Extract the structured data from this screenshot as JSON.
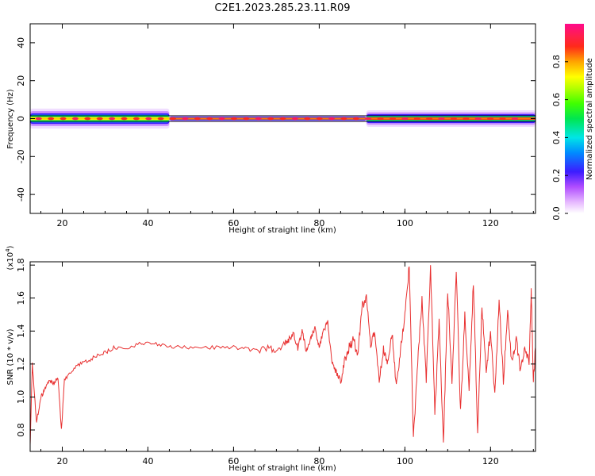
{
  "title": "C2E1.2023.285.23.11.R09",
  "colorbar": {
    "label": "Normalized spectral amplitude",
    "ticks": [
      "0.0",
      "0.2",
      "0.4",
      "0.6",
      "0.8"
    ]
  },
  "chart_data": [
    {
      "type": "heatmap",
      "title": "C2E1.2023.285.23.11.R09",
      "xlabel": "Height of straight line (km)",
      "ylabel": "Frequency (Hz)",
      "xlim": [
        12.5,
        130.5
      ],
      "ylim": [
        -50,
        50
      ],
      "x_ticks": [
        "20",
        "40",
        "60",
        "80",
        "100",
        "120"
      ],
      "y_ticks": [
        "40",
        "20",
        "0",
        "-20",
        "-40"
      ],
      "colorbar_label": "Normalized spectral amplitude",
      "colorbar_range": [
        0,
        1
      ],
      "band": {
        "center_hz": 0,
        "segments": [
          {
            "x": [
              12.5,
              45
            ],
            "half_width_hz": 3,
            "peak_amplitude": 0.7
          },
          {
            "x": [
              45,
              91
            ],
            "half_width_hz": 1,
            "peak_amplitude": 0.9
          },
          {
            "x": [
              91,
              130.5
            ],
            "half_width_hz": 2.5,
            "peak_amplitude": 0.9
          }
        ]
      },
      "lines_hz": [
        1.5,
        -1.5
      ]
    },
    {
      "type": "line",
      "xlabel": "Height of straight line (km)",
      "ylabel": "SNR (10 * v/v)",
      "multiplier": "(x10",
      "multiplier_exp": "4",
      "multiplier_close": ")",
      "xlim": [
        12.5,
        130.5
      ],
      "ylim": [
        0.67,
        1.82
      ],
      "x_ticks": [
        "20",
        "40",
        "60",
        "80",
        "100",
        "120"
      ],
      "y_ticks": [
        "0.8",
        "1.0",
        "1.2",
        "1.4",
        "1.6",
        "1.8"
      ],
      "series": [
        {
          "color": "#e83030",
          "x": [
            12.5,
            13,
            14,
            15,
            16,
            17,
            18,
            19,
            19.8,
            20.5,
            22,
            24,
            26,
            28,
            30,
            32,
            35,
            38,
            40,
            43,
            46,
            50,
            54,
            58,
            62,
            65,
            68,
            70,
            72,
            73,
            74,
            75,
            76,
            77,
            78,
            79,
            80,
            81,
            82,
            83,
            84,
            85,
            86,
            87,
            88,
            89,
            90,
            91,
            92,
            93,
            94,
            95,
            96,
            97,
            98,
            99,
            100,
            101,
            102,
            103,
            104,
            105,
            106,
            107,
            108,
            109,
            110,
            111,
            112,
            113,
            114,
            115,
            116,
            117,
            118,
            119,
            120,
            121,
            122,
            123,
            124,
            125,
            126,
            127,
            128,
            129,
            129.5,
            130,
            130.5
          ],
          "y": [
            0.7,
            1.2,
            0.85,
            1.0,
            1.05,
            1.1,
            1.08,
            1.12,
            0.8,
            1.1,
            1.15,
            1.2,
            1.22,
            1.25,
            1.27,
            1.3,
            1.3,
            1.32,
            1.33,
            1.32,
            1.3,
            1.3,
            1.3,
            1.3,
            1.3,
            1.28,
            1.3,
            1.28,
            1.33,
            1.35,
            1.38,
            1.3,
            1.4,
            1.28,
            1.36,
            1.42,
            1.3,
            1.4,
            1.45,
            1.2,
            1.15,
            1.1,
            1.22,
            1.3,
            1.35,
            1.25,
            1.55,
            1.6,
            1.3,
            1.4,
            1.1,
            1.3,
            1.2,
            1.4,
            1.05,
            1.3,
            1.5,
            1.79,
            0.75,
            1.2,
            1.6,
            1.1,
            1.78,
            0.9,
            1.45,
            0.72,
            1.65,
            1.1,
            1.78,
            0.9,
            1.5,
            1.05,
            1.7,
            0.78,
            1.55,
            1.15,
            1.4,
            1.0,
            1.6,
            1.1,
            1.5,
            1.2,
            1.35,
            1.15,
            1.3,
            1.2,
            1.65,
            1.1,
            1.3
          ]
        }
      ]
    }
  ]
}
